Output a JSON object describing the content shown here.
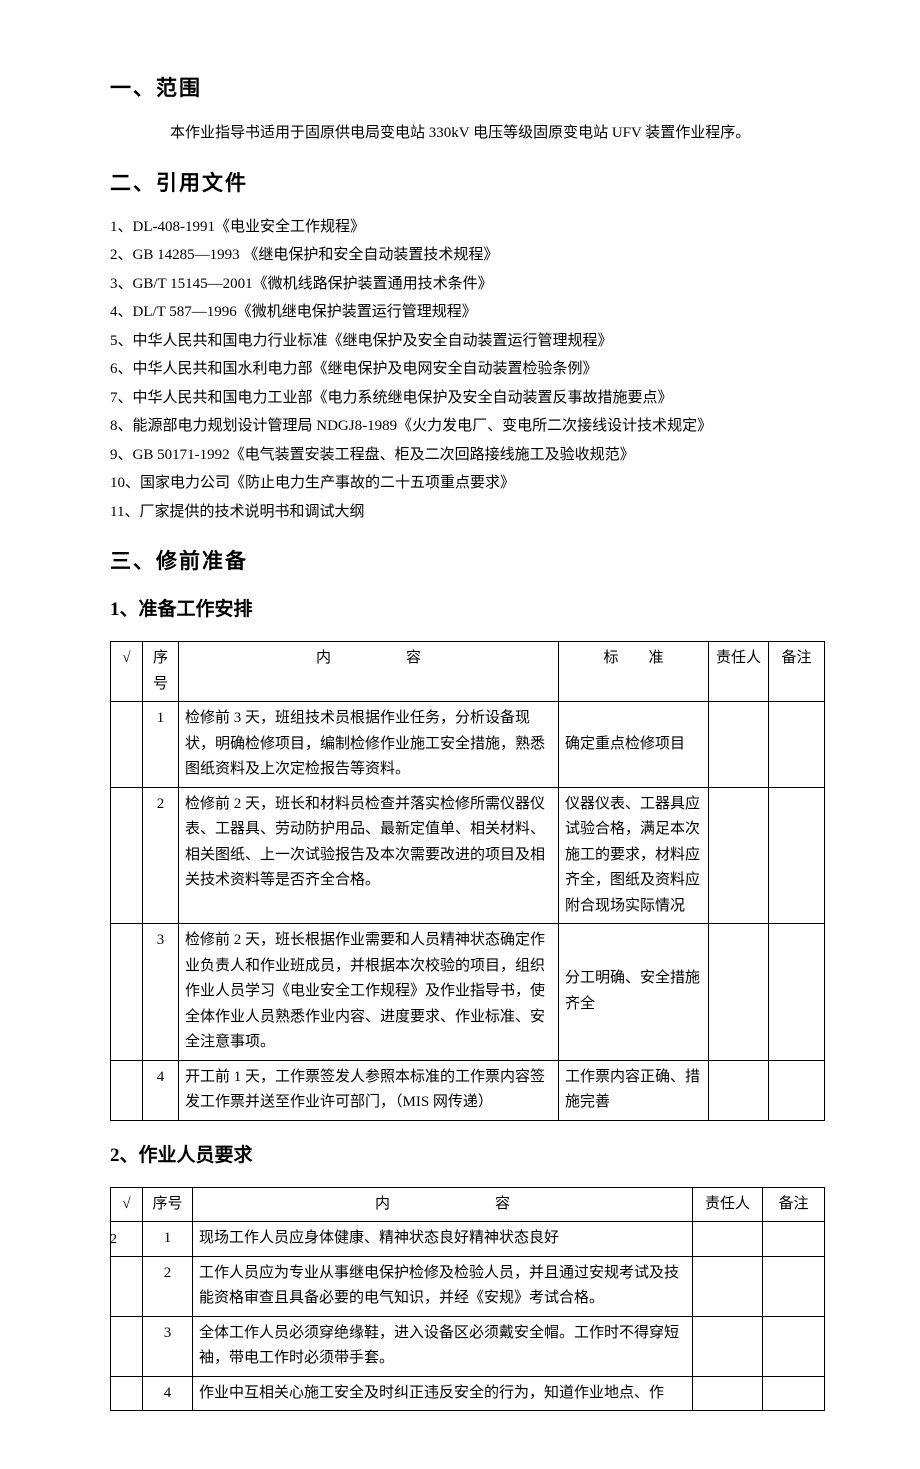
{
  "section1": {
    "title": "一、范围",
    "intro": "本作业指导书适用于固原供电局变电站 330kV 电压等级固原变电站 UFV 装置作业程序。"
  },
  "section2": {
    "title": "二、引用文件",
    "refs": [
      "1、DL-408-1991《电业安全工作规程》",
      "2、GB 14285—1993 《继电保护和安全自动装置技术规程》",
      "3、GB/T 15145—2001《微机线路保护装置通用技术条件》",
      "4、DL/T 587—1996《微机继电保护装置运行管理规程》",
      "5、中华人民共和国电力行业标准《继电保护及安全自动装置运行管理规程》",
      "6、中华人民共和国水利电力部《继电保护及电网安全自动装置检验条例》",
      "7、中华人民共和国电力工业部《电力系统继电保护及安全自动装置反事故措施要点》",
      "8、能源部电力规划设计管理局 NDGJ8-1989《火力发电厂、变电所二次接线设计技术规定》",
      "9、GB 50171-1992《电气装置安装工程盘、柜及二次回路接线施工及验收规范》",
      "10、国家电力公司《防止电力生产事故的二十五项重点要求》",
      "11、厂家提供的技术说明书和调试大纲"
    ]
  },
  "section3": {
    "title": "三、修前准备"
  },
  "sub1": {
    "title": "1、准备工作安排",
    "headers": {
      "check": "√",
      "seq": "序号",
      "content": "内　　　　　容",
      "std": "标　　准",
      "resp": "责任人",
      "note": "备注"
    },
    "rows": [
      {
        "seq": "1",
        "content": "检修前 3 天，班组技术员根据作业任务，分析设备现状，明确检修项目，编制检修作业施工安全措施，熟悉图纸资料及上次定检报告等资料。",
        "std": "确定重点检修项目"
      },
      {
        "seq": "2",
        "content": "检修前 2 天，班长和材料员检查并落实检修所需仪器仪表、工器具、劳动防护用品、最新定值单、相关材料、相关图纸、上一次试验报告及本次需要改进的项目及相关技术资料等是否齐全合格。",
        "std": "仪器仪表、工器具应试验合格，满足本次施工的要求，材料应齐全，图纸及资料应附合现场实际情况"
      },
      {
        "seq": "3",
        "content": "检修前 2 天，班长根据作业需要和人员精神状态确定作业负责人和作业班成员，并根据本次校验的项目，组织作业人员学习《电业安全工作规程》及作业指导书，使全体作业人员熟悉作业内容、进度要求、作业标准、安全注意事项。",
        "std": "分工明确、安全措施齐全"
      },
      {
        "seq": "4",
        "content": "开工前 1 天，工作票签发人参照本标准的工作票内容签发工作票并送至作业许可部门，（MIS 网传递）",
        "std": "工作票内容正确、措施完善"
      }
    ]
  },
  "sub2": {
    "title": "2、作业人员要求",
    "headers": {
      "check": "√",
      "seq": "序号",
      "content": "内　　　　　　　容",
      "resp": "责任人",
      "note": "备注"
    },
    "rows": [
      {
        "seq": "1",
        "content": "现场工作人员应身体健康、精神状态良好精神状态良好"
      },
      {
        "seq": "2",
        "content": "工作人员应为专业从事继电保护检修及检验人员，并且通过安规考试及技能资格审查且具备必要的电气知识，并经《安规》考试合格。"
      },
      {
        "seq": "3",
        "content": "全体工作人员必须穿绝缘鞋，进入设备区必须戴安全帽。工作时不得穿短袖，带电工作时必须带手套。"
      },
      {
        "seq": "4",
        "content": "作业中互相关心施工安全及时纠正违反安全的行为，知道作业地点、作"
      }
    ]
  },
  "pageNumber": "2"
}
